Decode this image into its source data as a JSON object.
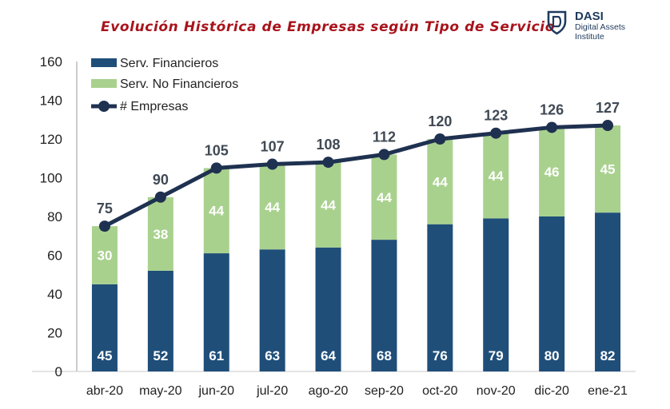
{
  "title": "Evolución Histórica de Empresas según Tipo de Servicio",
  "logo": {
    "brand": "DASI",
    "line1": "Digital Assets",
    "line2": "Institute"
  },
  "colors": {
    "financieros": "#1f4e79",
    "no_financieros": "#a9d18e",
    "line": "#1f3150",
    "title": "#a8131b"
  },
  "chart_data": {
    "type": "bar",
    "stacked": true,
    "title": "Evolución Histórica de Empresas según Tipo de Servicio",
    "categories": [
      "abr-20",
      "may-20",
      "jun-20",
      "jul-20",
      "ago-20",
      "sep-20",
      "oct-20",
      "nov-20",
      "dic-20",
      "ene-21"
    ],
    "series": [
      {
        "name": "Serv. Financieros",
        "type": "bar",
        "values": [
          45,
          52,
          61,
          63,
          64,
          68,
          76,
          79,
          80,
          82
        ]
      },
      {
        "name": "Serv. No Financieros",
        "type": "bar",
        "values": [
          30,
          38,
          44,
          44,
          44,
          44,
          44,
          44,
          46,
          45
        ]
      },
      {
        "name": "# Empresas",
        "type": "line",
        "values": [
          75,
          90,
          105,
          107,
          108,
          112,
          120,
          123,
          126,
          127
        ]
      }
    ],
    "ylim": [
      0,
      160
    ],
    "yticks": [
      0,
      20,
      40,
      60,
      80,
      100,
      120,
      140,
      160
    ],
    "legend_position": "top-left",
    "grid": false
  }
}
